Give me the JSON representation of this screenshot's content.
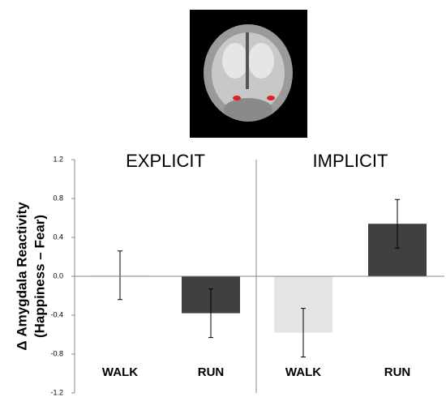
{
  "chart_data": [
    {
      "type": "bar",
      "title": "EXPLICIT",
      "y_label": [
        "Δ Amygdala Reactivity",
        "(Happiness – Fear)"
      ],
      "categories": [
        "WALK",
        "RUN"
      ],
      "values": [
        0.01,
        -0.38
      ],
      "errors": [
        0.25,
        0.25
      ],
      "colors": [
        "#f2f2f2",
        "#404040"
      ],
      "ylim": [
        -1.2,
        1.2
      ],
      "yticks": [
        1.2,
        0.8,
        0.4,
        {
          "value": 0,
          "label": "0.0"
        },
        -0.4,
        -0.8,
        -1.2
      ]
    },
    {
      "type": "bar",
      "title": "IMPLICIT",
      "categories": [
        "WALK",
        "RUN"
      ],
      "values": [
        -0.58,
        0.54
      ],
      "errors": [
        0.25,
        0.25
      ],
      "colors": [
        "#e4e4e4",
        "#404040"
      ],
      "ylim": [
        -1.2,
        1.2
      ]
    }
  ]
}
